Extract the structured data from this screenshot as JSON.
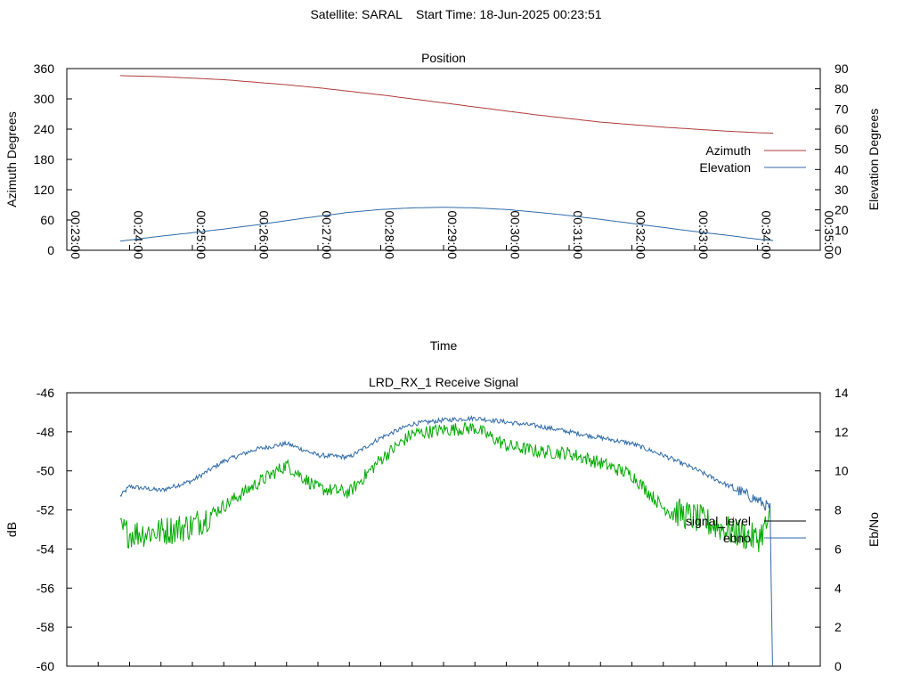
{
  "header": {
    "satellite": "Satellite: SARAL",
    "start_time": "Start Time: 18-Jun-2025 00:23:51"
  },
  "colors": {
    "azimuth": "#b03a3a",
    "elevation": "#2f6aa8",
    "signal_level": "#000000",
    "ebno_line": "#2f6aa8",
    "ebno_green": "#00aa00"
  },
  "chart_data": [
    {
      "type": "line",
      "title": "Position",
      "xlabel": "Time",
      "ylabel": "Azimuth Degrees",
      "y2label": "Elevation Degrees",
      "ylim": [
        0,
        360
      ],
      "y2lim": [
        0,
        90
      ],
      "yticks": [
        "0",
        "60",
        "120",
        "180",
        "240",
        "300",
        "360"
      ],
      "y2ticks": [
        "0",
        "10",
        "20",
        "30",
        "40",
        "50",
        "60",
        "70",
        "80",
        "90"
      ],
      "xticks": [
        "00:23:00",
        "00:24:00",
        "00:25:00",
        "00:26:00",
        "00:27:00",
        "00:28:00",
        "00:29:00",
        "00:30:00",
        "00:31:00",
        "00:32:00",
        "00:33:00",
        "00:34:00",
        "00:35:00"
      ],
      "xlim_minutes": [
        23,
        35
      ],
      "legend_position": "right",
      "series": [
        {
          "name": "Azimuth",
          "axis": "left",
          "x_minutes": [
            23.85,
            24.5,
            25,
            25.5,
            26,
            26.5,
            27,
            27.5,
            28,
            28.5,
            29,
            29.5,
            30,
            30.5,
            31,
            31.5,
            32,
            32.5,
            33,
            33.5,
            34,
            34.25
          ],
          "values": [
            346,
            344,
            341,
            338,
            333,
            328,
            322,
            315,
            308,
            300,
            292,
            284,
            276,
            268,
            261,
            254,
            249,
            244,
            240,
            236,
            233,
            232
          ]
        },
        {
          "name": "Elevation",
          "axis": "right",
          "x_minutes": [
            23.85,
            24.5,
            25,
            25.5,
            26,
            26.5,
            27,
            27.5,
            28,
            28.5,
            29,
            29.5,
            30,
            30.5,
            31,
            31.5,
            32,
            32.5,
            33,
            33.5,
            34,
            34.25
          ],
          "values": [
            4.5,
            7,
            8.7,
            10.5,
            12.5,
            14.7,
            16.8,
            18.8,
            20.2,
            21.0,
            21.3,
            21.0,
            20.2,
            18.8,
            17.2,
            15.3,
            13.3,
            11.3,
            9.3,
            7.5,
            5.5,
            4.8
          ]
        }
      ]
    },
    {
      "type": "line",
      "title": "LRD_RX_1 Receive Signal",
      "ylabel": "dB",
      "y2label": "Eb/No",
      "ylim": [
        -60,
        -46
      ],
      "y2lim": [
        0,
        14
      ],
      "yticks": [
        "-60",
        "-58",
        "-56",
        "-54",
        "-52",
        "-50",
        "-48",
        "-46"
      ],
      "y2ticks": [
        "0",
        "2",
        "4",
        "6",
        "8",
        "10",
        "12",
        "14"
      ],
      "xlim_minutes": [
        23,
        35
      ],
      "legend_position": "right",
      "series": [
        {
          "name": "signal_level",
          "axis": "left",
          "x_minutes": [
            23.85,
            24,
            24.5,
            25,
            25.5,
            26,
            26.5,
            27,
            27.5,
            28,
            28.5,
            29,
            29.5,
            30,
            30.5,
            31,
            31.5,
            32,
            32.5,
            33,
            33.5,
            34,
            34.2,
            34.22,
            34.24
          ],
          "values": [
            -51.3,
            -50.8,
            -51.0,
            -50.5,
            -49.5,
            -48.9,
            -48.6,
            -49.2,
            -49.3,
            -48.3,
            -47.6,
            -47.4,
            -47.3,
            -47.5,
            -47.7,
            -48.0,
            -48.3,
            -48.6,
            -49.2,
            -49.9,
            -50.7,
            -51.5,
            -51.9,
            -56.0,
            -60.0
          ]
        },
        {
          "name": "ebno",
          "axis": "right",
          "x_minutes": [
            23.85,
            24,
            24.5,
            25,
            25.5,
            26,
            26.5,
            27,
            27.5,
            28,
            28.5,
            29,
            29.5,
            30,
            30.5,
            31,
            31.5,
            32,
            32.5,
            33,
            33.5,
            34,
            34.2
          ],
          "values": [
            7.0,
            6.8,
            6.9,
            7.2,
            8.2,
            9.3,
            10.3,
            9.1,
            8.9,
            10.6,
            11.9,
            12.1,
            12.2,
            11.3,
            11.0,
            10.9,
            10.4,
            9.8,
            8.1,
            7.6,
            7.0,
            6.5,
            7.5
          ]
        }
      ]
    }
  ]
}
